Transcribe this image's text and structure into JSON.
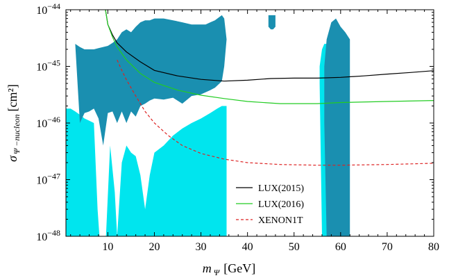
{
  "chart_data": {
    "type": "line",
    "xlabel": {
      "main": "m",
      "sub": "Ψ",
      "unit": "[GeV]"
    },
    "ylabel": {
      "main": "σ",
      "sub": "Ψ −nucleon",
      "unit": "[cm²]"
    },
    "xlim": [
      1,
      80
    ],
    "ylim": [
      1e-48,
      1e-44
    ],
    "yscale": "log",
    "x_ticks": [
      10,
      20,
      30,
      40,
      50,
      60,
      70,
      80
    ],
    "y_ticks": [
      {
        "base": "10",
        "exp": "−48"
      },
      {
        "base": "10",
        "exp": "−47"
      },
      {
        "base": "10",
        "exp": "−46"
      },
      {
        "base": "10",
        "exp": "−45"
      },
      {
        "base": "10",
        "exp": "−44"
      }
    ],
    "legend_position": "bottom-center",
    "series": [
      {
        "name": "LUX(2015)",
        "color": "#000000",
        "style": "solid",
        "x": [
          9.5,
          10,
          11,
          12,
          14,
          17,
          20,
          25,
          30,
          35,
          40,
          45,
          50,
          55,
          60,
          65,
          70,
          75,
          80
        ],
        "y": [
          1e-44,
          5.5e-45,
          3.6e-45,
          2.6e-45,
          1.8e-45,
          1.2e-45,
          8.5e-46,
          6.8e-46,
          5.9e-46,
          5.5e-46,
          5.7e-46,
          6.1e-46,
          6.2e-46,
          6.2e-46,
          6.4e-46,
          6.8e-46,
          7.3e-46,
          7.8e-46,
          8.4e-46
        ]
      },
      {
        "name": "LUX(2016)",
        "color": "#22cc22",
        "style": "solid",
        "x": [
          9.5,
          10,
          11,
          12,
          14,
          17,
          20,
          25,
          30,
          35,
          40,
          47,
          55,
          60,
          70,
          80
        ],
        "y": [
          1e-44,
          5.5e-45,
          3.3e-45,
          2.2e-45,
          1.3e-45,
          7.5e-46,
          5.2e-46,
          3.8e-46,
          3.1e-46,
          2.7e-46,
          2.4e-46,
          2.2e-46,
          2.2e-46,
          2.3e-46,
          2.4e-46,
          2.5e-46
        ]
      },
      {
        "name": "XENON1T",
        "color": "#dd2222",
        "style": "dashed",
        "x": [
          12,
          13,
          14,
          16,
          18,
          20,
          23,
          26,
          30,
          35,
          40,
          47,
          55,
          60,
          70,
          80
        ],
        "y": [
          1.3e-45,
          8.5e-46,
          5.8e-46,
          3e-46,
          1.6e-46,
          1e-46,
          6e-47,
          4e-47,
          2.9e-47,
          2.3e-47,
          2e-47,
          1.85e-47,
          1.8e-47,
          1.8e-47,
          1.85e-47,
          1.95e-47
        ]
      }
    ],
    "regions": [
      {
        "color": "#00e5ee",
        "x": [
          1,
          2,
          3,
          4,
          5,
          6,
          7,
          7.8,
          8.2,
          8.8,
          9.6,
          10.5,
          11.5,
          12,
          13,
          14,
          15,
          16,
          17,
          18,
          19,
          20,
          22,
          24,
          26,
          28,
          30,
          32,
          34,
          35,
          36,
          37,
          37.8,
          38.5,
          40,
          42,
          44,
          46,
          48,
          50,
          52,
          54,
          55,
          55.8,
          56.5,
          57.2,
          58,
          59,
          60,
          61,
          61.5,
          62,
          62.3,
          63,
          65,
          68,
          72,
          76,
          80
        ],
        "y_top": [
          1e-44,
          1e-44,
          1e-44,
          1e-44,
          1e-44,
          1e-44,
          1e-44,
          1e-44,
          1e-44,
          1e-44,
          1e-44,
          1e-44,
          1e-44,
          1e-44,
          1e-44,
          1e-44,
          1e-44,
          1e-44,
          1e-44,
          1e-44,
          1e-44,
          1e-44,
          1e-44,
          1e-44,
          1e-44,
          1e-44,
          1e-44,
          1e-44,
          1e-44,
          1e-44,
          1e-44,
          1e-44,
          1e-44,
          1e-44,
          1e-44,
          1e-44,
          1e-44,
          1e-44,
          1e-44,
          1e-44,
          1e-44,
          1e-44,
          1e-44,
          1e-44,
          1e-44,
          1e-44,
          1e-44,
          1e-44,
          1e-44,
          1e-44,
          1e-44,
          1e-44,
          1e-44,
          1e-44,
          1e-44,
          1e-44,
          1e-44,
          1e-44,
          1e-44
        ],
        "y_bottom": [
          1e-44,
          1e-44,
          1e-44,
          1e-44,
          1e-44,
          1e-44,
          1e-44,
          1e-44,
          1e-44,
          1e-44,
          1e-44,
          1e-44,
          1e-44,
          1e-44,
          1e-44,
          1e-44,
          1e-44,
          1e-44,
          1e-44,
          1e-44,
          1e-44,
          1e-44,
          1e-44,
          1e-44,
          1e-44,
          1e-44,
          1e-44,
          1e-44,
          1e-44,
          1e-44,
          1e-44,
          1e-44,
          1e-44,
          1e-44,
          1e-44,
          1e-44,
          1e-44,
          1e-44,
          1e-44,
          1e-44,
          1e-44,
          1e-44,
          1e-44,
          1e-44,
          1e-44,
          1e-44,
          1e-44,
          1e-44,
          1e-44,
          1e-44,
          1e-44,
          1e-44,
          1e-44,
          1e-44,
          1e-44,
          1e-44,
          1e-44,
          1e-44,
          1e-44
        ]
      },
      {
        "color": "#00e5ee",
        "x": [
          1,
          2,
          3,
          4,
          5,
          6,
          7,
          7.8,
          8.2,
          8.8,
          9.6,
          10.5,
          11.5,
          12,
          13,
          14,
          15,
          16,
          17,
          18,
          19,
          20,
          22,
          24,
          26,
          28,
          30,
          32,
          33.5,
          34.5,
          35.5
        ],
        "y_top": [
          1.8e-46,
          1.8e-46,
          1.6e-46,
          1.4e-46,
          1.2e-46,
          1.1e-46,
          1e-46,
          3e-48,
          1e-48,
          1e-48,
          1e-48,
          4e-47,
          6e-48,
          1e-48,
          2e-47,
          4e-47,
          3e-47,
          2.6e-47,
          1.2e-47,
          3e-48,
          1.2e-47,
          3e-47,
          4e-47,
          6e-47,
          8e-47,
          1e-46,
          1.2e-46,
          1.5e-46,
          1.8e-46,
          2e-46,
          2e-46
        ],
        "y_bottom": [
          1e-48,
          1e-48,
          1e-48,
          1e-48,
          1e-48,
          1e-48,
          1e-48,
          1e-48,
          1e-48,
          1e-48,
          1e-48,
          1e-48,
          1e-48,
          1e-48,
          1e-48,
          1e-48,
          1e-48,
          1e-48,
          1e-48,
          1e-48,
          1e-48,
          1e-48,
          1e-48,
          1e-48,
          1e-48,
          1e-48,
          1e-48,
          1e-48,
          1e-48,
          1e-48,
          1e-48
        ]
      },
      {
        "color": "#1a8fb0",
        "x": [
          3,
          4,
          5,
          6,
          7,
          8,
          9,
          10,
          11,
          12,
          13,
          14,
          15,
          16,
          17,
          18,
          19,
          20,
          22,
          24,
          26,
          28,
          30,
          31,
          32,
          33,
          34,
          34.5,
          35,
          35.5
        ],
        "y_top": [
          2.5e-45,
          2.2e-45,
          2e-45,
          2e-45,
          2e-45,
          2.1e-45,
          2.2e-45,
          2.3e-45,
          2.6e-45,
          3e-45,
          4e-45,
          4.5e-45,
          4e-45,
          5e-45,
          6e-45,
          6.5e-45,
          6.5e-45,
          7e-45,
          7e-45,
          6.5e-45,
          6e-45,
          5.5e-45,
          5.5e-45,
          5.5e-45,
          6e-45,
          6.5e-45,
          7.5e-45,
          8e-45,
          7e-45,
          3e-45
        ],
        "y_bottom": [
          2.5e-45,
          1e-46,
          1.5e-46,
          1.6e-46,
          1.8e-46,
          1.2e-46,
          4e-47,
          1.5e-46,
          1.6e-46,
          1e-46,
          1.6e-46,
          1e-46,
          1.6e-46,
          1.3e-46,
          2e-46,
          2.2e-46,
          2.5e-46,
          2.7e-46,
          2.6e-46,
          2.8e-46,
          2.2e-46,
          3e-46,
          3.2e-46,
          3.5e-46,
          3.8e-46,
          4.2e-46,
          5e-46,
          5.5e-46,
          1e-45,
          3e-45
        ]
      },
      {
        "color": "#1a8fb0",
        "x": [
          44.5,
          45,
          45.5,
          46
        ],
        "y_top": [
          8e-45,
          8e-45,
          8e-45,
          8e-45
        ],
        "y_bottom": [
          5e-45,
          4.5e-45,
          4.5e-45,
          5e-45
        ]
      },
      {
        "color": "#00e5ee",
        "x": [
          55.5,
          56,
          56.5,
          57,
          57.5,
          58
        ],
        "y_top": [
          1e-45,
          2e-45,
          2.5e-45,
          2.5e-45,
          2e-45,
          1e-45
        ],
        "y_bottom": [
          5e-46,
          1e-48,
          1e-48,
          1e-48,
          1e-48,
          5e-46
        ]
      },
      {
        "color": "#1a8fb0",
        "x": [
          56.5,
          57,
          58,
          59,
          60,
          61,
          62
        ],
        "y_top": [
          1e-45,
          3e-45,
          6e-45,
          7e-45,
          5e-45,
          4e-45,
          3e-45
        ],
        "y_bottom": [
          1e-46,
          1e-48,
          1e-48,
          1e-48,
          1e-48,
          1e-48,
          1e-48
        ]
      }
    ]
  }
}
